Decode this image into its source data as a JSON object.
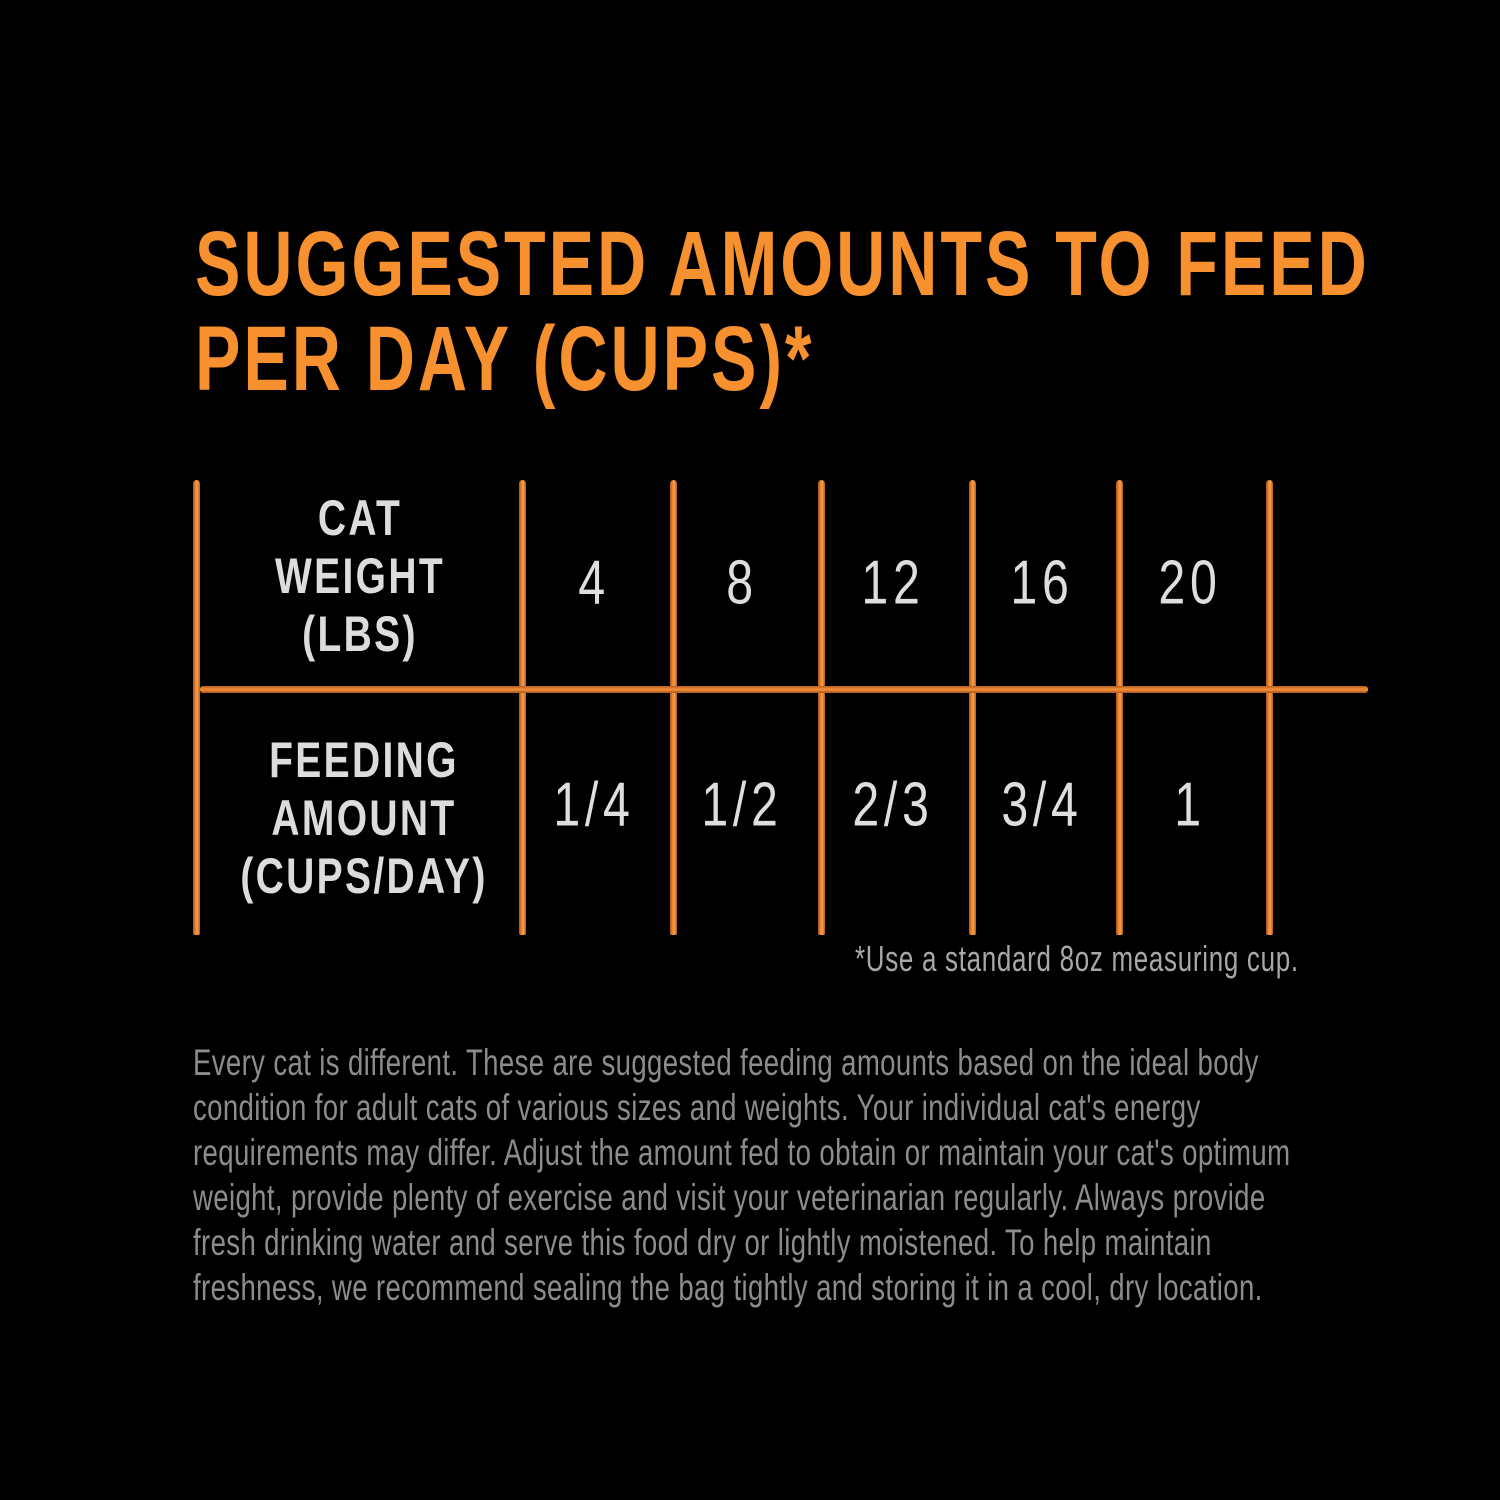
{
  "title": {
    "lines": [
      "SUGGESTED AMOUNTS TO FEED",
      "PER DAY (CUPS)*"
    ],
    "color": "#f7902f"
  },
  "table": {
    "row_labels": [
      [
        "CAT",
        "WEIGHT",
        "(LBS)"
      ],
      [
        "FEEDING",
        "AMOUNT",
        "(CUPS/DAY)"
      ]
    ],
    "cat_weight_lbs": [
      "4",
      "8",
      "12",
      "16",
      "20"
    ],
    "feeding_amount_cups_per_day": [
      "1/4",
      "1/2",
      "2/3",
      "3/4",
      "1"
    ],
    "line_color": "#f28a2e"
  },
  "footnote": "*Use a standard 8oz measuring cup.",
  "paragraph": [
    "Every cat is different.  These are suggested feeding amounts based on the ideal body",
    "condition for adult cats of various sizes and weights. Your individual cat's energy",
    "requirements may differ. Adjust the amount fed to obtain or maintain your cat's optimum",
    "weight, provide plenty of exercise and visit your veterinarian regularly.  Always provide",
    "fresh drinking water and serve this food dry or lightly moistened.  To help maintain",
    "freshness, we recommend sealing the bag tightly and storing it in a cool, dry location."
  ]
}
